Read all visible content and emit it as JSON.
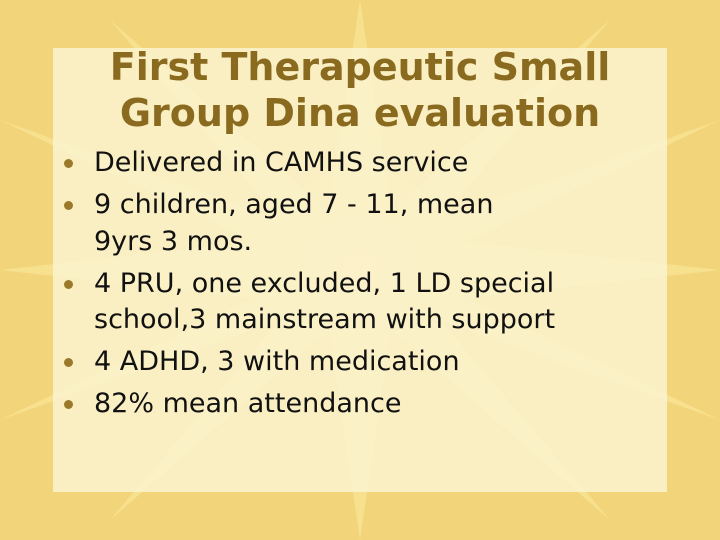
{
  "slide": {
    "title_line1": "First Therapeutic Small",
    "title_line2": "Group Dina evaluation",
    "bullets": [
      {
        "line1": "Delivered in CAMHS service"
      },
      {
        "line1": "9 children, aged 7 - 11, mean",
        "line2": "9yrs 3 mos."
      },
      {
        "line1": "4 PRU, one excluded, 1 LD special",
        "line2": "school,3 mainstream with support"
      },
      {
        "line1": "4 ADHD, 3 with medication"
      },
      {
        "line1": "82% mean attendance"
      }
    ]
  },
  "colors": {
    "background": "#f2d57a",
    "starburst": "#f7e08e",
    "sun_glow": "#f9d98a",
    "title": "#8a6a1e",
    "bullet_dot": "#9a7a2a",
    "text": "#111111"
  },
  "icons": {
    "bullet": "filled-circle-bullet"
  }
}
